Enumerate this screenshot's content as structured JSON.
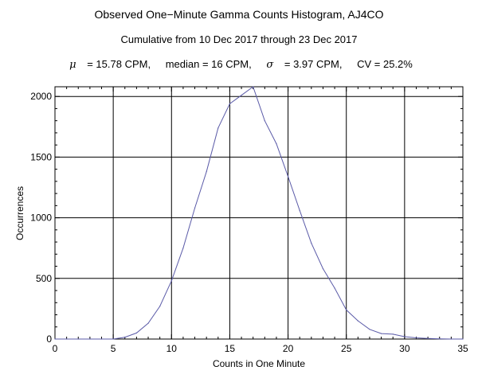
{
  "chart_data": {
    "type": "line",
    "title": "Observed One−Minute Gamma Counts Histogram, AJ4CO",
    "subtitle": "Cumulative from 10 Dec 2017 through 23 Dec 2017",
    "stats": {
      "mu_symbol": "μ",
      "mu_text": "= 15.78 CPM,",
      "median_text": "median = 16 CPM,",
      "sigma_symbol": "σ",
      "sigma_text": "= 3.97 CPM,",
      "cv_text": "CV = 25.2%"
    },
    "xlabel": "Counts in One Minute",
    "ylabel": "Occurrences",
    "xlim": [
      0,
      35
    ],
    "ylim": [
      0,
      2080
    ],
    "x_ticks": [
      "0",
      "5",
      "10",
      "15",
      "20",
      "25",
      "30",
      "35"
    ],
    "y_ticks": [
      "0",
      "500",
      "1000",
      "1500",
      "2000"
    ],
    "grid": true,
    "line_color": "#5b5ba8",
    "series": [
      {
        "x": [
          0,
          1,
          2,
          3,
          4,
          5,
          6,
          7,
          8,
          9,
          10,
          11,
          12,
          13,
          14,
          15,
          16,
          17,
          18,
          19,
          20,
          21,
          22,
          23,
          24,
          25,
          26,
          27,
          28,
          29,
          30,
          31,
          32,
          33,
          34,
          35
        ],
        "y": [
          0,
          0,
          0,
          0,
          0,
          0,
          15,
          50,
          130,
          270,
          480,
          750,
          1080,
          1380,
          1740,
          1940,
          2010,
          2080,
          1800,
          1610,
          1340,
          1060,
          790,
          580,
          420,
          240,
          150,
          80,
          45,
          40,
          20,
          10,
          5,
          2,
          0,
          0
        ]
      }
    ]
  }
}
